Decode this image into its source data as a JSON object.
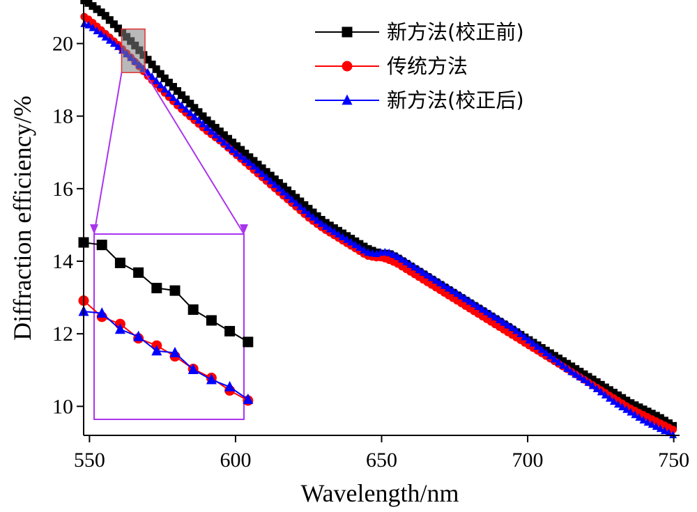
{
  "chart_data": {
    "type": "line",
    "xlabel": "Wavelength/nm",
    "ylabel": "Diffraction efficiency/%",
    "xlim": [
      548,
      752
    ],
    "ylim": [
      9.2,
      21.2
    ],
    "xticks": [
      550,
      600,
      650,
      700,
      750
    ],
    "yticks": [
      10,
      12,
      14,
      16,
      18,
      20
    ],
    "legend_position": "top-right",
    "series": [
      {
        "name": "新方法(校正前)",
        "color": "#000000",
        "marker": "square",
        "points": [
          [
            548,
            21.2
          ],
          [
            550,
            21.1
          ],
          [
            555,
            20.8
          ],
          [
            560,
            20.4
          ],
          [
            565,
            20.0
          ],
          [
            570,
            19.55
          ],
          [
            575,
            19.1
          ],
          [
            580,
            18.7
          ],
          [
            585,
            18.3
          ],
          [
            590,
            17.9
          ],
          [
            595,
            17.55
          ],
          [
            600,
            17.2
          ],
          [
            605,
            16.85
          ],
          [
            610,
            16.5
          ],
          [
            615,
            16.15
          ],
          [
            620,
            15.8
          ],
          [
            625,
            15.45
          ],
          [
            630,
            15.1
          ],
          [
            635,
            14.85
          ],
          [
            640,
            14.6
          ],
          [
            645,
            14.35
          ],
          [
            648,
            14.25
          ],
          [
            650,
            14.2
          ],
          [
            652,
            14.22
          ],
          [
            655,
            14.1
          ],
          [
            660,
            13.85
          ],
          [
            665,
            13.6
          ],
          [
            670,
            13.35
          ],
          [
            675,
            13.1
          ],
          [
            680,
            12.85
          ],
          [
            685,
            12.6
          ],
          [
            690,
            12.35
          ],
          [
            695,
            12.1
          ],
          [
            700,
            11.85
          ],
          [
            705,
            11.6
          ],
          [
            710,
            11.35
          ],
          [
            715,
            11.1
          ],
          [
            720,
            10.85
          ],
          [
            725,
            10.6
          ],
          [
            730,
            10.35
          ],
          [
            735,
            10.1
          ],
          [
            740,
            9.9
          ],
          [
            745,
            9.7
          ],
          [
            750,
            9.45
          ]
        ]
      },
      {
        "name": "传统方法",
        "color": "#ff0000",
        "marker": "circle",
        "points": [
          [
            548,
            20.75
          ],
          [
            550,
            20.65
          ],
          [
            555,
            20.3
          ],
          [
            560,
            19.95
          ],
          [
            565,
            19.55
          ],
          [
            570,
            19.1
          ],
          [
            575,
            18.7
          ],
          [
            580,
            18.3
          ],
          [
            585,
            17.95
          ],
          [
            590,
            17.6
          ],
          [
            595,
            17.3
          ],
          [
            600,
            16.95
          ],
          [
            605,
            16.6
          ],
          [
            610,
            16.25
          ],
          [
            615,
            15.9
          ],
          [
            620,
            15.55
          ],
          [
            625,
            15.2
          ],
          [
            630,
            14.9
          ],
          [
            635,
            14.65
          ],
          [
            640,
            14.4
          ],
          [
            645,
            14.15
          ],
          [
            648,
            14.1
          ],
          [
            650,
            14.1
          ],
          [
            652,
            14.05
          ],
          [
            655,
            13.95
          ],
          [
            660,
            13.7
          ],
          [
            665,
            13.45
          ],
          [
            670,
            13.2
          ],
          [
            675,
            12.95
          ],
          [
            680,
            12.7
          ],
          [
            685,
            12.45
          ],
          [
            690,
            12.2
          ],
          [
            695,
            11.95
          ],
          [
            700,
            11.7
          ],
          [
            705,
            11.45
          ],
          [
            710,
            11.2
          ],
          [
            715,
            10.95
          ],
          [
            720,
            10.7
          ],
          [
            725,
            10.45
          ],
          [
            730,
            10.2
          ],
          [
            735,
            9.95
          ],
          [
            740,
            9.75
          ],
          [
            745,
            9.55
          ],
          [
            750,
            9.35
          ]
        ]
      },
      {
        "name": "新方法(校正后)",
        "color": "#0000ff",
        "marker": "triangle",
        "points": [
          [
            548,
            20.55
          ],
          [
            550,
            20.5
          ],
          [
            555,
            20.2
          ],
          [
            560,
            19.9
          ],
          [
            565,
            19.55
          ],
          [
            570,
            19.2
          ],
          [
            575,
            18.8
          ],
          [
            580,
            18.4
          ],
          [
            585,
            18.05
          ],
          [
            590,
            17.7
          ],
          [
            595,
            17.35
          ],
          [
            600,
            17.0
          ],
          [
            605,
            16.7
          ],
          [
            610,
            16.35
          ],
          [
            615,
            16.0
          ],
          [
            620,
            15.65
          ],
          [
            625,
            15.3
          ],
          [
            630,
            15.0
          ],
          [
            635,
            14.75
          ],
          [
            640,
            14.5
          ],
          [
            645,
            14.25
          ],
          [
            648,
            14.2
          ],
          [
            650,
            14.25
          ],
          [
            652,
            14.25
          ],
          [
            655,
            14.15
          ],
          [
            660,
            13.9
          ],
          [
            665,
            13.65
          ],
          [
            670,
            13.4
          ],
          [
            675,
            13.15
          ],
          [
            680,
            12.9
          ],
          [
            685,
            12.65
          ],
          [
            690,
            12.4
          ],
          [
            695,
            12.15
          ],
          [
            700,
            11.85
          ],
          [
            705,
            11.55
          ],
          [
            710,
            11.25
          ],
          [
            715,
            10.95
          ],
          [
            720,
            10.7
          ],
          [
            725,
            10.4
          ],
          [
            730,
            10.1
          ],
          [
            735,
            9.85
          ],
          [
            740,
            9.6
          ],
          [
            745,
            9.4
          ],
          [
            750,
            9.2
          ]
        ]
      }
    ],
    "zoom_source_region": {
      "x": [
        561,
        569
      ],
      "y": [
        19.2,
        20.4
      ]
    },
    "inset": {
      "position": "lower-left",
      "series": [
        {
          "name_ref": 0,
          "y": [
            14.52,
            14.45,
            13.95,
            13.68,
            13.25,
            13.18,
            12.65,
            12.35,
            12.05,
            11.75
          ]
        },
        {
          "name_ref": 1,
          "y": [
            12.9,
            12.45,
            12.25,
            11.85,
            11.65,
            11.35,
            11.0,
            10.75,
            10.4,
            10.12
          ]
        },
        {
          "name_ref": 2,
          "y": [
            12.6,
            12.55,
            12.1,
            11.9,
            11.5,
            11.45,
            10.98,
            10.7,
            10.5,
            10.15
          ]
        }
      ]
    }
  }
}
